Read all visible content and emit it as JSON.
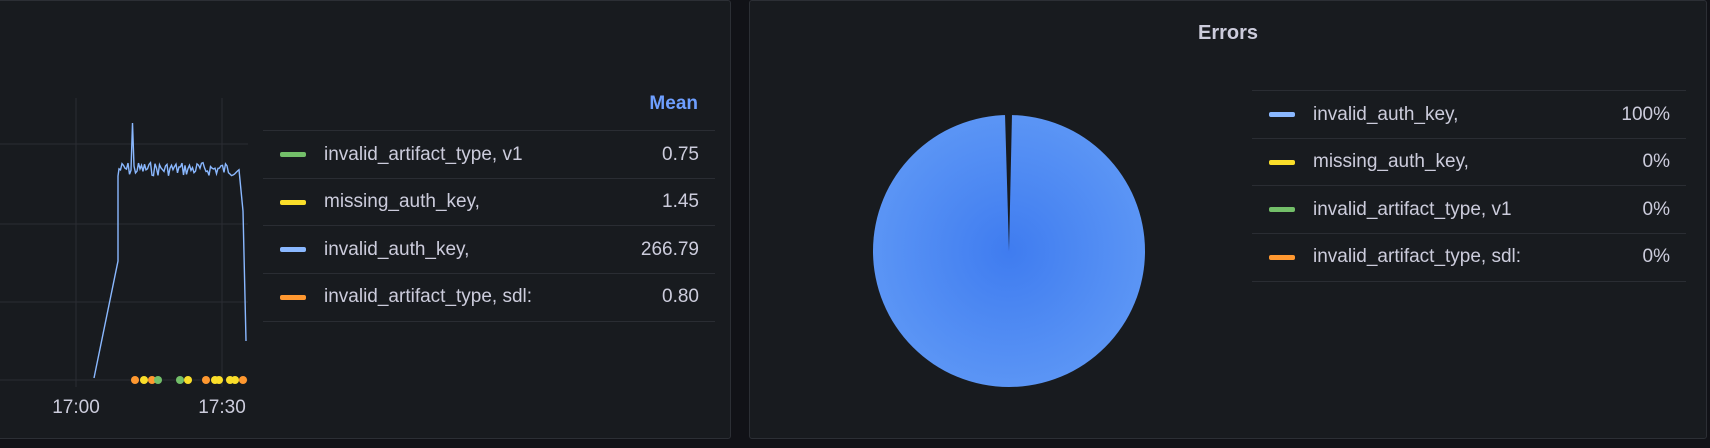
{
  "timeseries_panel": {
    "legend_header": "Mean",
    "x_ticks": [
      "17:00",
      "17:30"
    ],
    "legend": [
      {
        "label": "invalid_artifact_type, v1",
        "value": "0.75",
        "color": "#73bf69"
      },
      {
        "label": "missing_auth_key,",
        "value": "1.45",
        "color": "#fade2a"
      },
      {
        "label": "invalid_auth_key,",
        "value": "266.79",
        "color": "#8ab8ff"
      },
      {
        "label": "invalid_artifact_type, sdl:",
        "value": "0.80",
        "color": "#ff9830"
      }
    ]
  },
  "errors_panel": {
    "title": "Errors",
    "legend": [
      {
        "label": "invalid_auth_key,",
        "value": "100%",
        "color": "#8ab8ff"
      },
      {
        "label": "missing_auth_key,",
        "value": "0%",
        "color": "#fade2a"
      },
      {
        "label": "invalid_artifact_type, v1",
        "value": "0%",
        "color": "#73bf69"
      },
      {
        "label": "invalid_artifact_type, sdl:",
        "value": "0%",
        "color": "#ff9830"
      }
    ]
  },
  "chart_data": [
    {
      "type": "line",
      "x_ticks": [
        "17:00",
        "17:30"
      ],
      "grid": true,
      "legend_placement": "right",
      "series": [
        {
          "name": "invalid_auth_key,",
          "color": "#8ab8ff",
          "mean": 266.79
        },
        {
          "name": "invalid_artifact_type, v1",
          "color": "#73bf69",
          "mean": 0.75
        },
        {
          "name": "missing_auth_key,",
          "color": "#fade2a",
          "mean": 1.45
        },
        {
          "name": "invalid_artifact_type, sdl:",
          "color": "#ff9830",
          "mean": 0.8
        }
      ]
    },
    {
      "type": "pie",
      "title": "Errors",
      "legend_placement": "right",
      "slices": [
        {
          "label": "invalid_auth_key,",
          "percent": 100,
          "color": "#5794f2"
        },
        {
          "label": "missing_auth_key,",
          "percent": 0,
          "color": "#fade2a"
        },
        {
          "label": "invalid_artifact_type, v1",
          "percent": 0,
          "color": "#73bf69"
        },
        {
          "label": "invalid_artifact_type, sdl:",
          "percent": 0,
          "color": "#ff9830"
        }
      ]
    }
  ]
}
